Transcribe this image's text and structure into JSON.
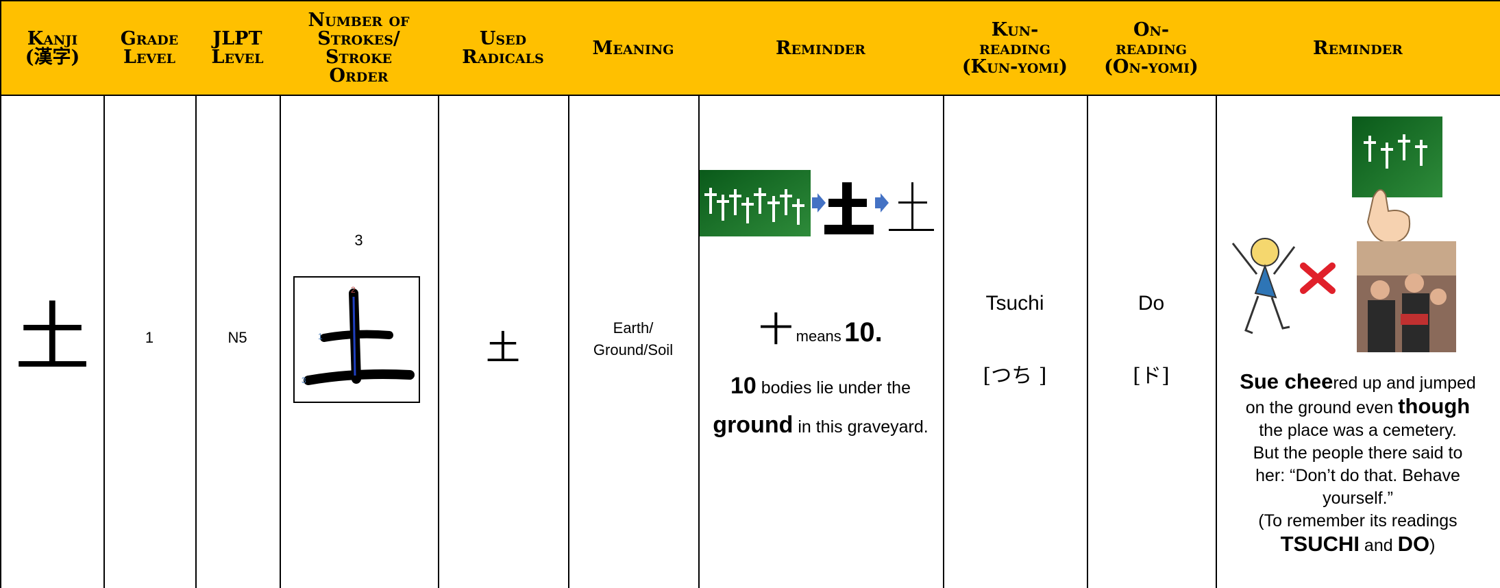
{
  "header": [
    {
      "lines": [
        "Kanji",
        "(漢字)"
      ]
    },
    {
      "lines": [
        "Grade",
        "Level"
      ]
    },
    {
      "lines": [
        "JLPT",
        "Level"
      ]
    },
    {
      "lines": [
        "Number of",
        "Strokes/",
        "Stroke",
        "Order"
      ]
    },
    {
      "lines": [
        "Used",
        "Radicals"
      ]
    },
    {
      "lines": [
        "Meaning"
      ]
    },
    {
      "lines": [
        "Reminder"
      ]
    },
    {
      "lines": [
        "Kun-",
        "reading",
        "(Kun-yomi)"
      ]
    },
    {
      "lines": [
        "On-",
        "reading",
        "(On-yomi)"
      ]
    },
    {
      "lines": [
        "Reminder"
      ]
    }
  ],
  "row": {
    "kanji": "土",
    "grade": "1",
    "jlpt": "N5",
    "strokes": "3",
    "stroke_numbers": [
      "1",
      "2",
      "3"
    ],
    "radical": "土",
    "meaning": [
      "Earth/",
      "Ground/Soil"
    ],
    "reminder1": {
      "symbol": "十",
      "means": "means",
      "number": "10.",
      "lines": [
        [
          {
            "text": "10",
            "bold": true
          },
          {
            "text": " bodies lie under the",
            "bold": false
          }
        ],
        [
          {
            "text": "ground",
            "bold": true
          },
          {
            "text": " in this graveyard.",
            "bold": false
          }
        ]
      ]
    },
    "kun": {
      "romaji": "Tsuchi",
      "kana": "[つち ]"
    },
    "on": {
      "romaji": "Do",
      "kana": "[ド]"
    },
    "reminder2": {
      "lines": [
        [
          {
            "text": "Sue chee",
            "bold": true
          },
          {
            "text": "red up and jumped",
            "bold": false
          }
        ],
        [
          {
            "text": "on the ground even ",
            "bold": false
          },
          {
            "text": "though",
            "bold": true
          }
        ],
        [
          {
            "text": "the place was a cemetery.",
            "bold": false
          }
        ],
        [
          {
            "text": "But the people there said to",
            "bold": false
          }
        ],
        [
          {
            "text": "her: “Don’t do that. Behave",
            "bold": false
          }
        ],
        [
          {
            "text": "yourself.”",
            "bold": false
          }
        ],
        [
          {
            "text": "(To remember its readings",
            "bold": false
          }
        ],
        [
          {
            "text": "TSUCHI",
            "bold": true
          },
          {
            "text": " and ",
            "bold": false
          },
          {
            "text": "DO",
            "bold": true
          },
          {
            "text": ")",
            "bold": false
          }
        ]
      ]
    }
  }
}
